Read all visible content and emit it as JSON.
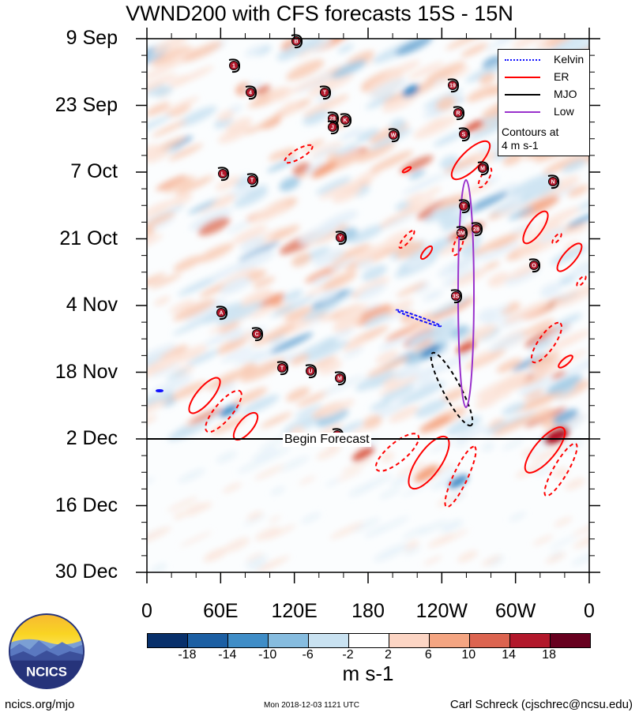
{
  "title": "VWND200 with CFS forecasts  15S - 15N",
  "chart_data": {
    "type": "heatmap",
    "title": "VWND200 with CFS forecasts  15S - 15N",
    "variable": "VWND200",
    "xlabel": "",
    "ylabel": "",
    "x_tick_labels": [
      "0",
      "60E",
      "120E",
      "180",
      "120W",
      "60W",
      "0"
    ],
    "y_tick_labels": [
      "9 Sep",
      "23 Sep",
      "7 Oct",
      "21 Oct",
      "4 Nov",
      "18 Nov",
      "2 Dec",
      "16 Dec",
      "30 Dec"
    ],
    "begin_forecast_label": "Begin Forecast",
    "begin_forecast_date": "2 Dec",
    "colorbar": {
      "units": "m s-1",
      "tick_labels": [
        "-18",
        "-14",
        "-10",
        "-6",
        "-2",
        "2",
        "6",
        "10",
        "14",
        "18"
      ],
      "colors": [
        "#08306b",
        "#1c5fa3",
        "#3f8dc7",
        "#86bcdf",
        "#c9e2f1",
        "#ffffff",
        "#fcd5c4",
        "#f4a582",
        "#dc6450",
        "#b2182b",
        "#67001f"
      ]
    },
    "legend": {
      "entries": [
        {
          "label": "Kelvin",
          "color": "#1010ff"
        },
        {
          "label": "ER",
          "color": "#ff0000"
        },
        {
          "label": "MJO",
          "color": "#000000"
        },
        {
          "label": "Low",
          "color": "#9932cc"
        }
      ],
      "note_line1": "Contours at",
      "note_line2": "4 m s-1",
      "placement": "top-right"
    },
    "storm_labels": [
      "B",
      "1",
      "4",
      "T",
      "19",
      "R",
      "28",
      "K",
      "J",
      "W",
      "S",
      "M",
      "L",
      "T",
      "N",
      "T",
      "3M",
      "28",
      "Y",
      "O",
      "3S",
      "A",
      "C",
      "T",
      "U",
      "M",
      "C"
    ]
  },
  "footer": {
    "left": "ncics.org/mjo",
    "middle": "Mon 2018-12-03 1121 UTC",
    "right": "Carl Schreck (cjschrec@ncsu.edu)"
  },
  "logo_text": "NCICS"
}
